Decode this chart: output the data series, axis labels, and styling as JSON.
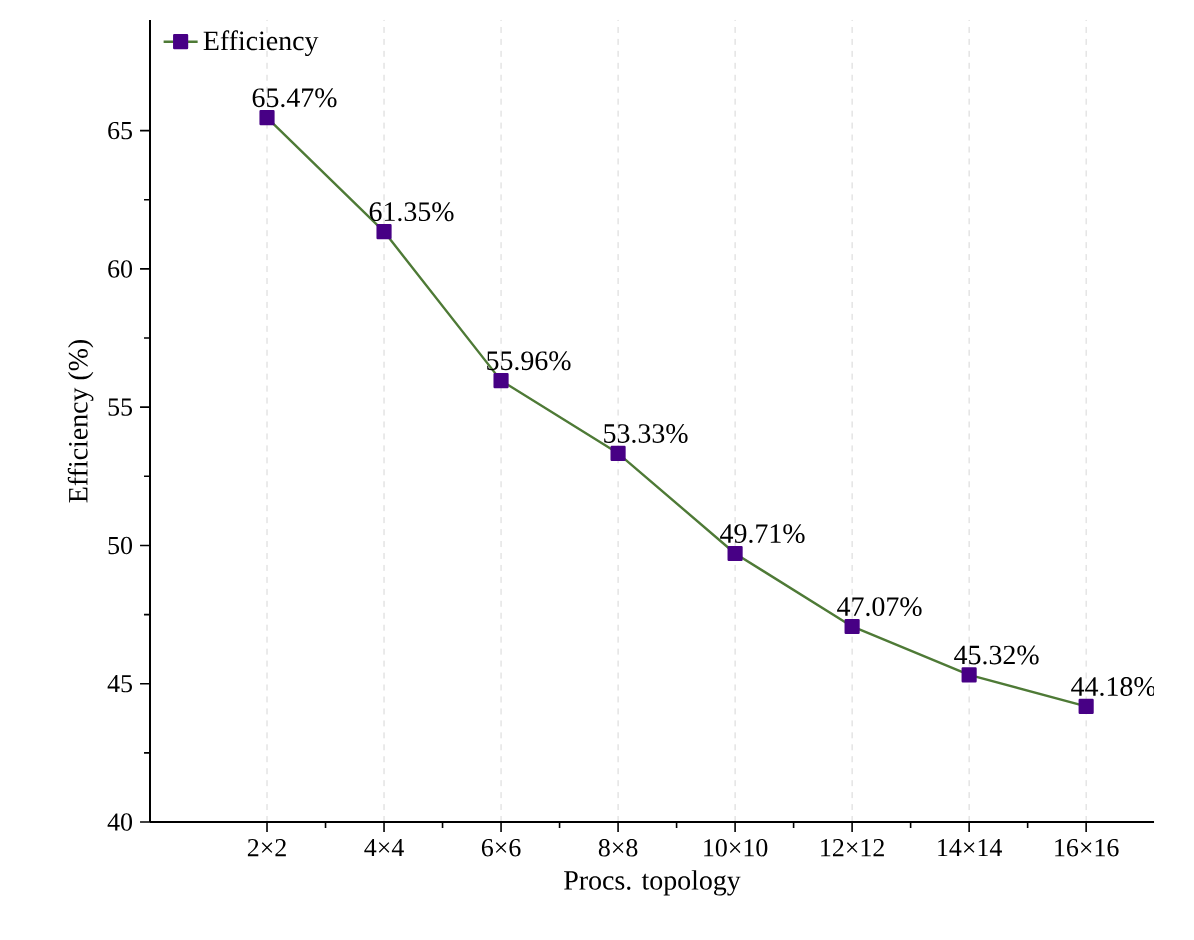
{
  "chart_data": {
    "type": "line",
    "xlabel": "Procs. topology",
    "ylabel": "Efficiency (%)",
    "categories": [
      "2×2",
      "4×4",
      "6×6",
      "8×8",
      "10×10",
      "12×12",
      "14×14",
      "16×16"
    ],
    "series": [
      {
        "name": "Efficiency",
        "color": "#4e7a36",
        "values": [
          65.47,
          61.35,
          55.96,
          53.33,
          49.71,
          47.07,
          45.32,
          44.18
        ],
        "value_labels": [
          "65.47%",
          "61.35%",
          "55.96%",
          "53.33%",
          "49.71%",
          "47.07%",
          "45.32%",
          "44.18%"
        ]
      }
    ],
    "ylim": [
      40,
      69
    ],
    "yticks": [
      40,
      45,
      50,
      55,
      60,
      65
    ],
    "grid": "x",
    "legend": "top left",
    "marker": "square",
    "line_style": "solid"
  }
}
